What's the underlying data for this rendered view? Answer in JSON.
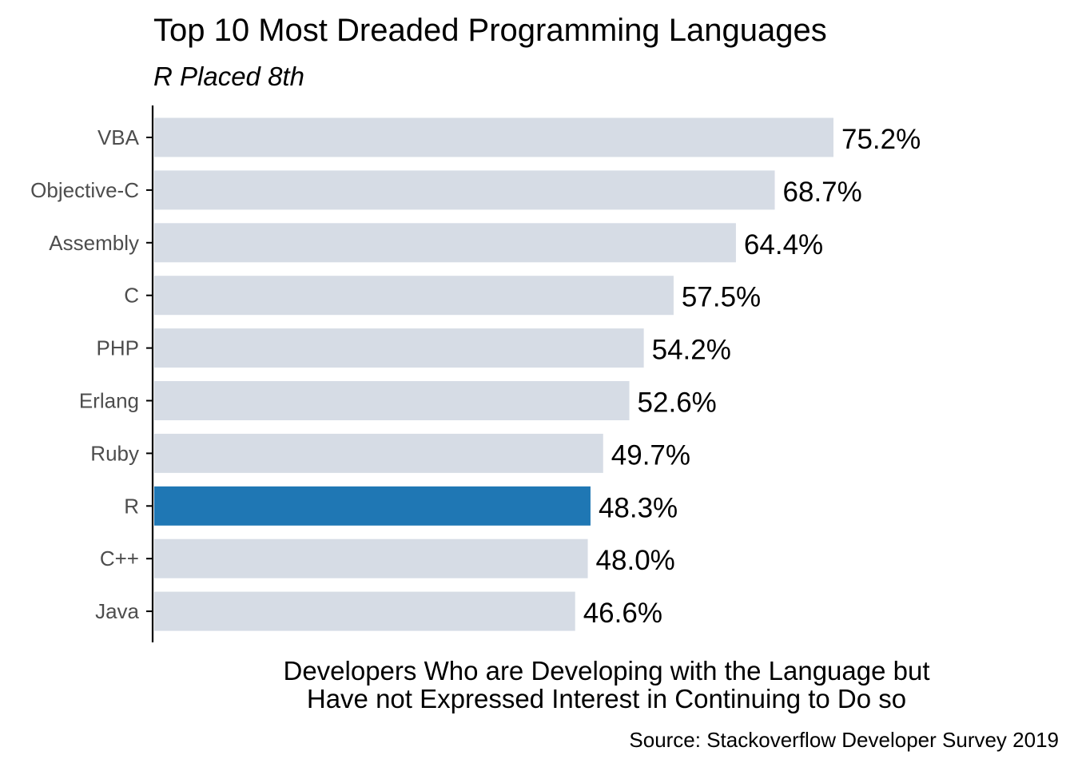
{
  "chart_data": {
    "type": "bar",
    "orientation": "horizontal",
    "title": "Top 10 Most Dreaded Programming Languages",
    "subtitle": "R Placed 8th",
    "xlabel_line1": "Developers Who are Developing with the Language but",
    "xlabel_line2": "Have not Expressed Interest in Continuing to Do so",
    "caption": "Source: Stackoverflow Developer Survey 2019",
    "categories": [
      "VBA",
      "Objective-C",
      "Assembly",
      "C",
      "PHP",
      "Erlang",
      "Ruby",
      "R",
      "C++",
      "Java"
    ],
    "values": [
      75.2,
      68.7,
      64.4,
      57.5,
      54.2,
      52.6,
      49.7,
      48.3,
      48.0,
      46.6
    ],
    "labels": [
      "75.2%",
      "68.7%",
      "64.4%",
      "57.5%",
      "54.2%",
      "52.6%",
      "49.7%",
      "48.3%",
      "48.0%",
      "46.6%"
    ],
    "highlight": "R",
    "xlim": [
      0,
      75.2
    ],
    "colors": {
      "default_bar": "#d6dce5",
      "highlight_bar": "#1f77b4",
      "text": "#000000",
      "axis_text": "#4d4d4d",
      "axis_line": "#000000"
    }
  }
}
